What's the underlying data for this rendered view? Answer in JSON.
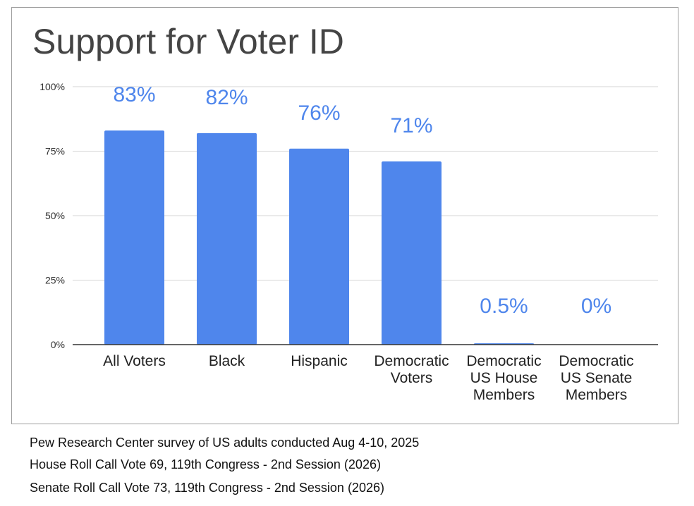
{
  "chart_data": {
    "type": "bar",
    "title": "Support for Voter ID",
    "categories": [
      [
        "All Voters"
      ],
      [
        "Black"
      ],
      [
        "Hispanic"
      ],
      [
        "Democratic",
        "Voters"
      ],
      [
        "Democratic",
        "US House",
        "Members"
      ],
      [
        "Democratic",
        "US Senate",
        "Members"
      ]
    ],
    "values": [
      83,
      82,
      76,
      71,
      0.5,
      0
    ],
    "value_labels": [
      "83%",
      "82%",
      "76%",
      "71%",
      "0.5%",
      "0%"
    ],
    "y_ticks": [
      "0%",
      "25%",
      "50%",
      "75%",
      "100%"
    ],
    "y_tick_values": [
      0,
      25,
      50,
      75,
      100
    ],
    "ylim": [
      0,
      100
    ],
    "xlabel": "",
    "ylabel": "",
    "grid": true,
    "bar_color": "#4f86ec",
    "label_color": "#4f86ec"
  },
  "notes": [
    "Pew Research Center survey of US adults conducted Aug 4-10, 2025",
    "House Roll Call Vote 69, 119th Congress - 2nd Session (2026)",
    "Senate Roll Call Vote 73, 119th Congress - 2nd Session (2026)"
  ]
}
